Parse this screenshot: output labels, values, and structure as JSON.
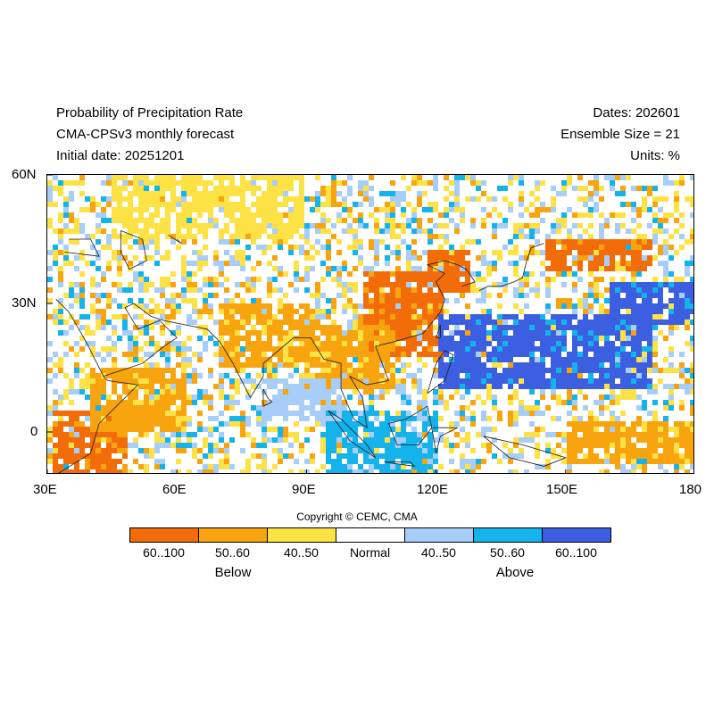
{
  "header": {
    "title": "Probability of Precipitation Rate",
    "model": "CMA-CPSv3 monthly forecast",
    "initial_date": "Initial date: 20251201",
    "dates": "Dates: 202601",
    "ensemble": "Ensemble Size = 21",
    "units": "Units: %"
  },
  "axes": {
    "lat_labels": [
      "60N",
      "30N",
      "0"
    ],
    "lon_labels": [
      "30E",
      "60E",
      "90E",
      "120E",
      "150E",
      "180"
    ],
    "lon_range": [
      30,
      180
    ],
    "lat_range": [
      -10,
      60
    ]
  },
  "copyright": "Copyright © CEMC, CMA",
  "legend": {
    "categories": [
      {
        "label": "60..100",
        "color": "#f26d0a"
      },
      {
        "label": "50..60",
        "color": "#f8a40e"
      },
      {
        "label": "40..50",
        "color": "#fde246"
      },
      {
        "label": "Normal",
        "color": "#ffffff"
      },
      {
        "label": "40..50",
        "color": "#a7cef8"
      },
      {
        "label": "50..60",
        "color": "#15b3ec"
      },
      {
        "label": "60..100",
        "color": "#3c5ee0"
      }
    ],
    "below_label": "Below",
    "above_label": "Above"
  },
  "map_regions": [
    {
      "name": "east-africa-arabia-dry",
      "category": 0,
      "lon": [
        31,
        48
      ],
      "lat": [
        -10,
        5
      ]
    },
    {
      "name": "arabian-sea-dry",
      "category": 1,
      "lon": [
        40,
        62
      ],
      "lat": [
        0,
        15
      ]
    },
    {
      "name": "south-china-dry",
      "category": 0,
      "lon": [
        103,
        122
      ],
      "lat": [
        18,
        37
      ]
    },
    {
      "name": "indochina-dry",
      "category": 1,
      "lon": [
        90,
        110
      ],
      "lat": [
        10,
        25
      ]
    },
    {
      "name": "korea-japan-dry",
      "category": 0,
      "lon": [
        118,
        128
      ],
      "lat": [
        33,
        42
      ]
    },
    {
      "name": "north-pacific-dry",
      "category": 0,
      "lon": [
        145,
        170
      ],
      "lat": [
        37,
        45
      ]
    },
    {
      "name": "central-asia-dry",
      "category": 2,
      "lon": [
        45,
        90
      ],
      "lat": [
        45,
        60
      ]
    },
    {
      "name": "india-dry",
      "category": 1,
      "lon": [
        70,
        92
      ],
      "lat": [
        15,
        30
      ]
    },
    {
      "name": "western-pacific-wet",
      "category": 6,
      "lon": [
        120,
        170
      ],
      "lat": [
        10,
        28
      ]
    },
    {
      "name": "maritime-continent-wet",
      "category": 5,
      "lon": [
        95,
        120
      ],
      "lat": [
        -10,
        5
      ]
    },
    {
      "name": "east-pacific-wet",
      "category": 6,
      "lon": [
        160,
        180
      ],
      "lat": [
        25,
        35
      ]
    },
    {
      "name": "bay-of-bengal-wet",
      "category": 4,
      "lon": [
        80,
        98
      ],
      "lat": [
        2,
        12
      ]
    },
    {
      "name": "south-pacific-dry",
      "category": 1,
      "lon": [
        150,
        180
      ],
      "lat": [
        -8,
        2
      ]
    }
  ]
}
